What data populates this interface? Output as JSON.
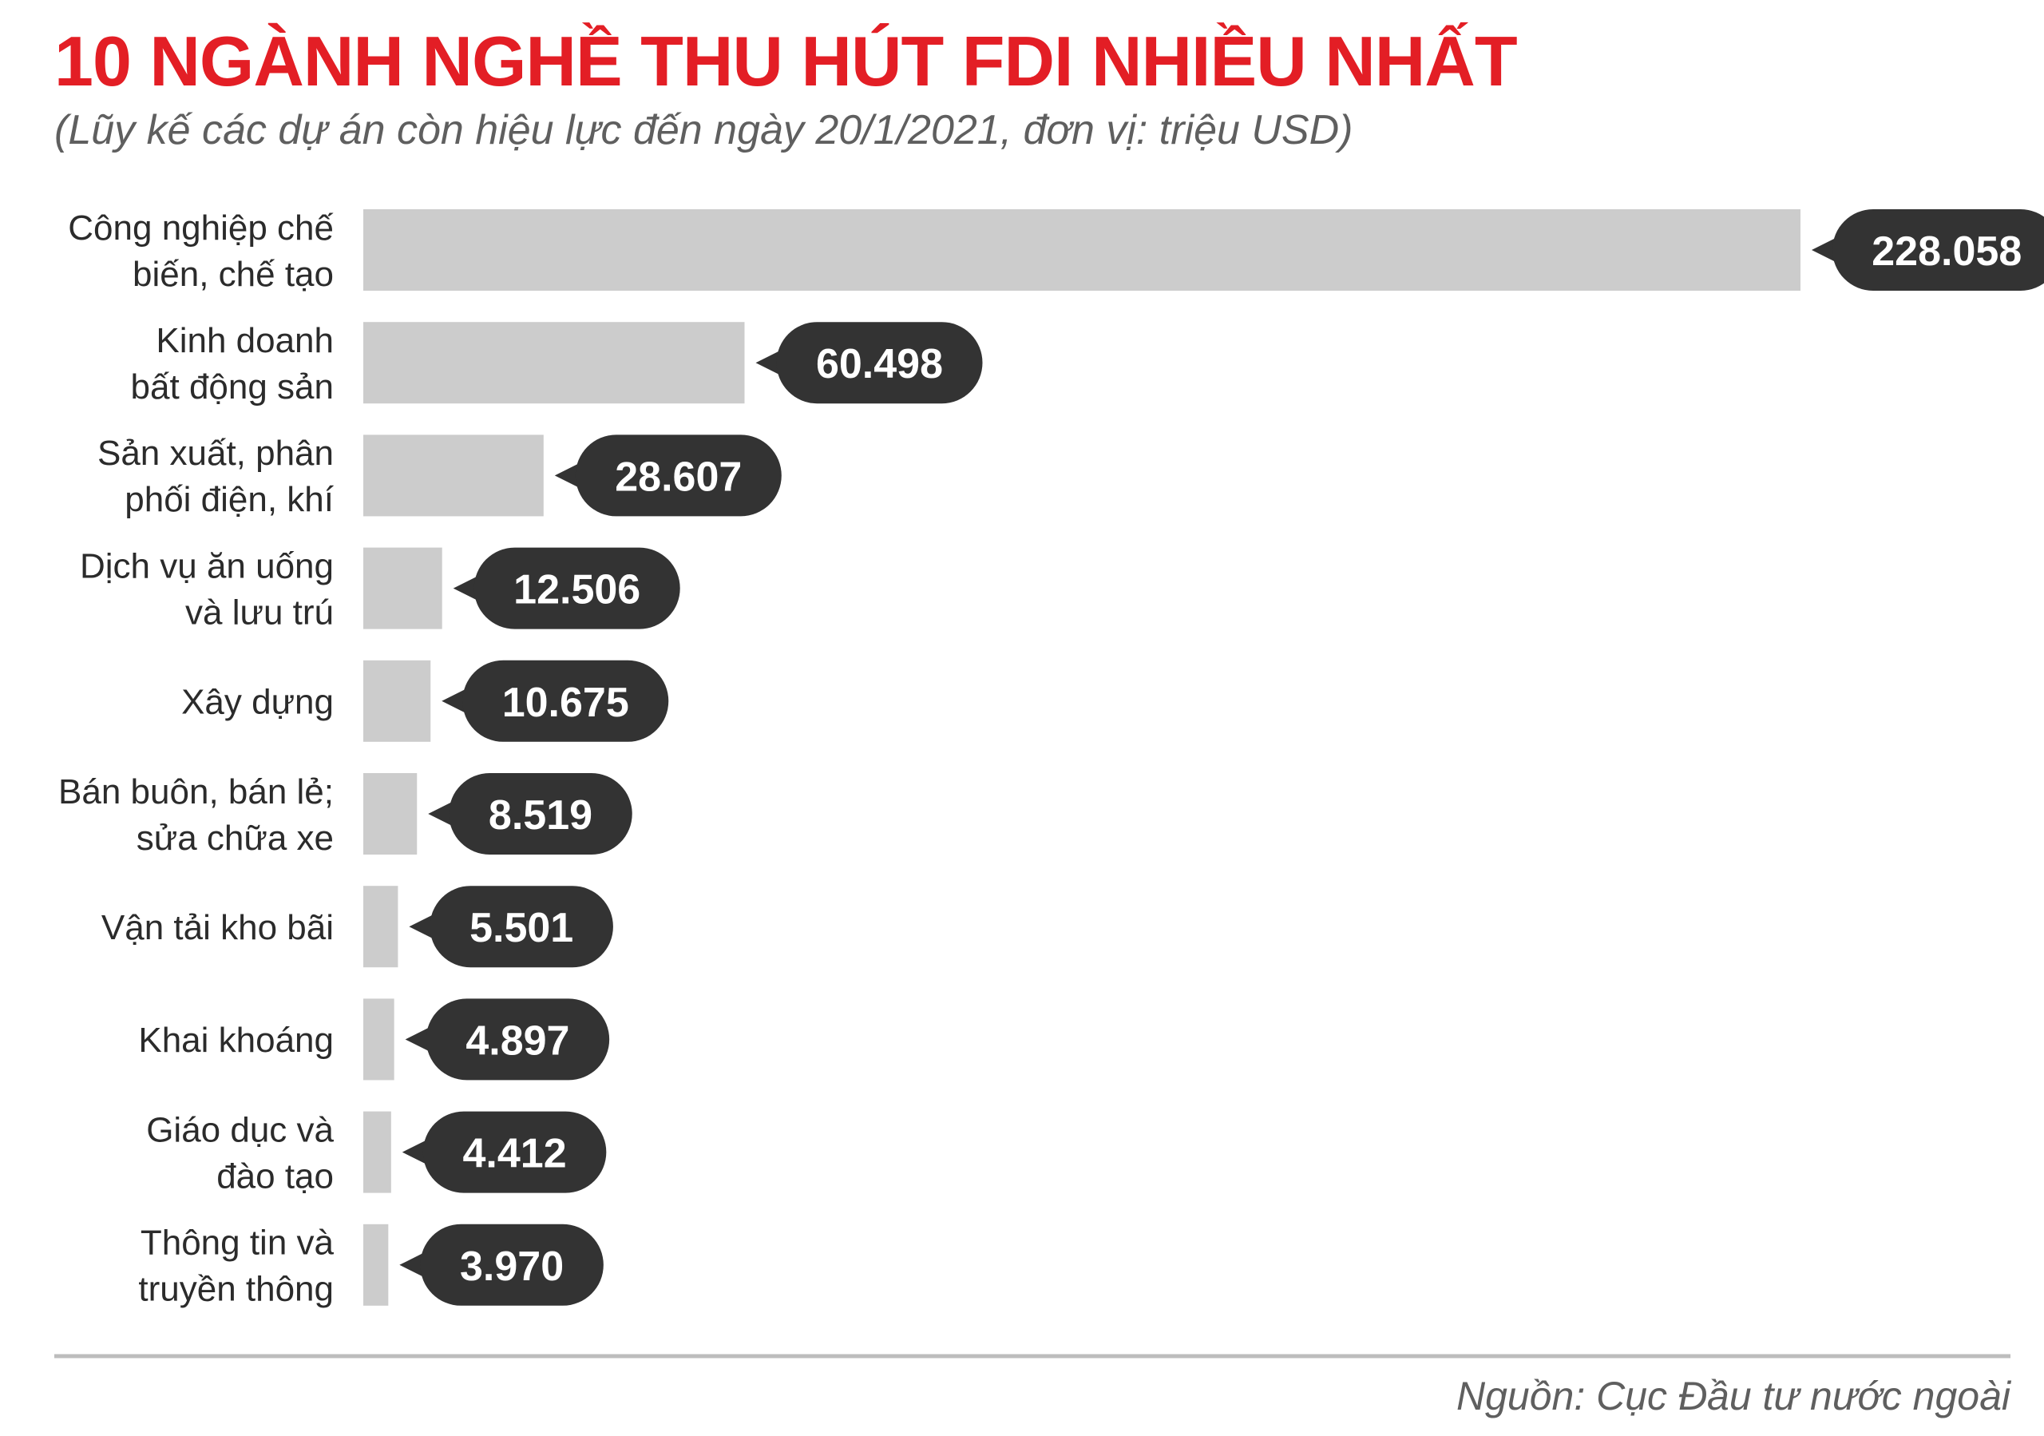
{
  "colors": {
    "title": "#e31e25",
    "bar": "#cccccc",
    "bubble": "#333333",
    "bubble_text": "#ffffff",
    "rule": "#bdbdbd"
  },
  "chart_data": {
    "type": "bar",
    "orientation": "horizontal",
    "title": "10 NGÀNH NGHỀ THU HÚT FDI NHIỀU NHẤT",
    "subtitle": "(Lũy kế các dự án còn hiệu lực đến ngày 20/1/2021, đơn vị: triệu USD)",
    "source": "Nguồn: Cục Đầu tư nước ngoài",
    "categories": [
      [
        "Công nghiệp chế",
        "biến, chế tạo"
      ],
      [
        "Kinh doanh",
        "bất động sản"
      ],
      [
        "Sản xuất, phân",
        "phối điện, khí"
      ],
      [
        "Dịch vụ ăn uống",
        "và lưu trú"
      ],
      [
        "Xây dựng"
      ],
      [
        "Bán buôn, bán lẻ;",
        "sửa chữa xe"
      ],
      [
        "Vận tải kho bãi"
      ],
      [
        "Khai khoáng"
      ],
      [
        "Giáo dục và",
        "đào tạo"
      ],
      [
        "Thông tin và",
        "truyền thông"
      ]
    ],
    "values": [
      228058,
      60498,
      28607,
      12506,
      10675,
      8519,
      5501,
      4897,
      4412,
      3970
    ],
    "value_labels": [
      "228.058",
      "60.498",
      "28.607",
      "12.506",
      "10.675",
      "8.519",
      "5.501",
      "4.897",
      "4.412",
      "3.970"
    ],
    "xlim": [
      0,
      228058
    ],
    "grid": false,
    "legend": "none"
  }
}
